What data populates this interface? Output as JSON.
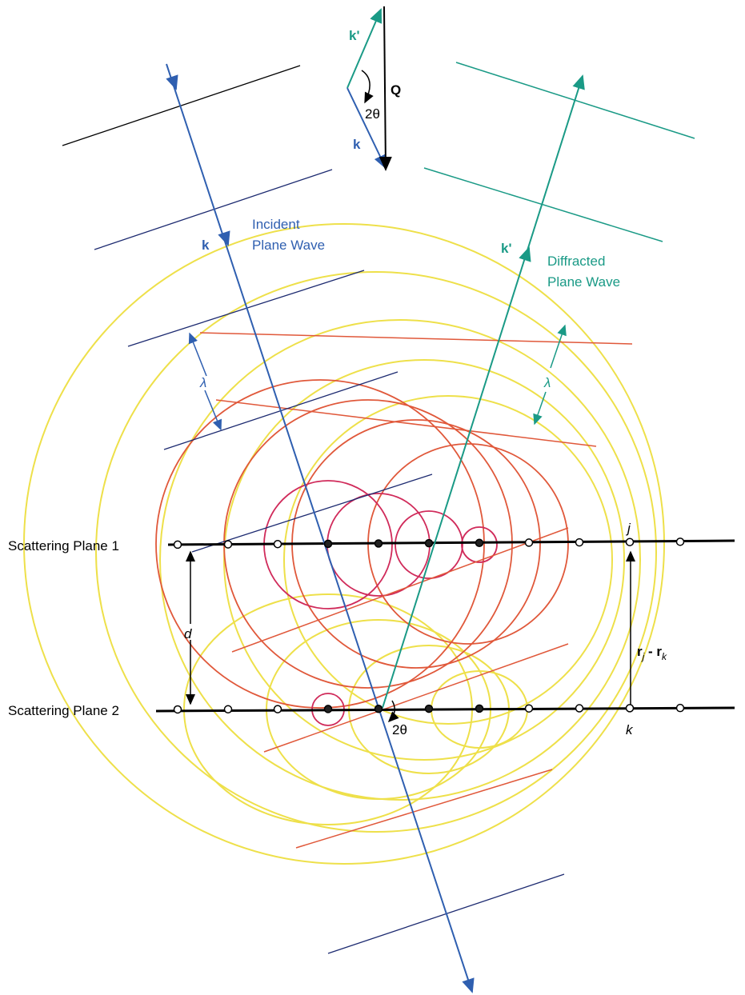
{
  "inset": {
    "k_prime": "k'",
    "q": "Q",
    "angle": "2θ",
    "k": "k"
  },
  "incident": {
    "k": "k",
    "label": [
      "Incident",
      "Plane Wave"
    ],
    "lambda": "λ"
  },
  "diffracted": {
    "k": "k'",
    "label": [
      "Diffracted",
      "Plane Wave"
    ],
    "lambda": "λ"
  },
  "planes": [
    {
      "label": "Scattering Plane 1",
      "atom": "j"
    },
    {
      "label": "Scattering Plane 2",
      "atom": "k"
    }
  ],
  "spacing": "d",
  "separation": [
    "r",
    "j",
    " - ",
    "r",
    "k"
  ],
  "angle": "2θ"
}
